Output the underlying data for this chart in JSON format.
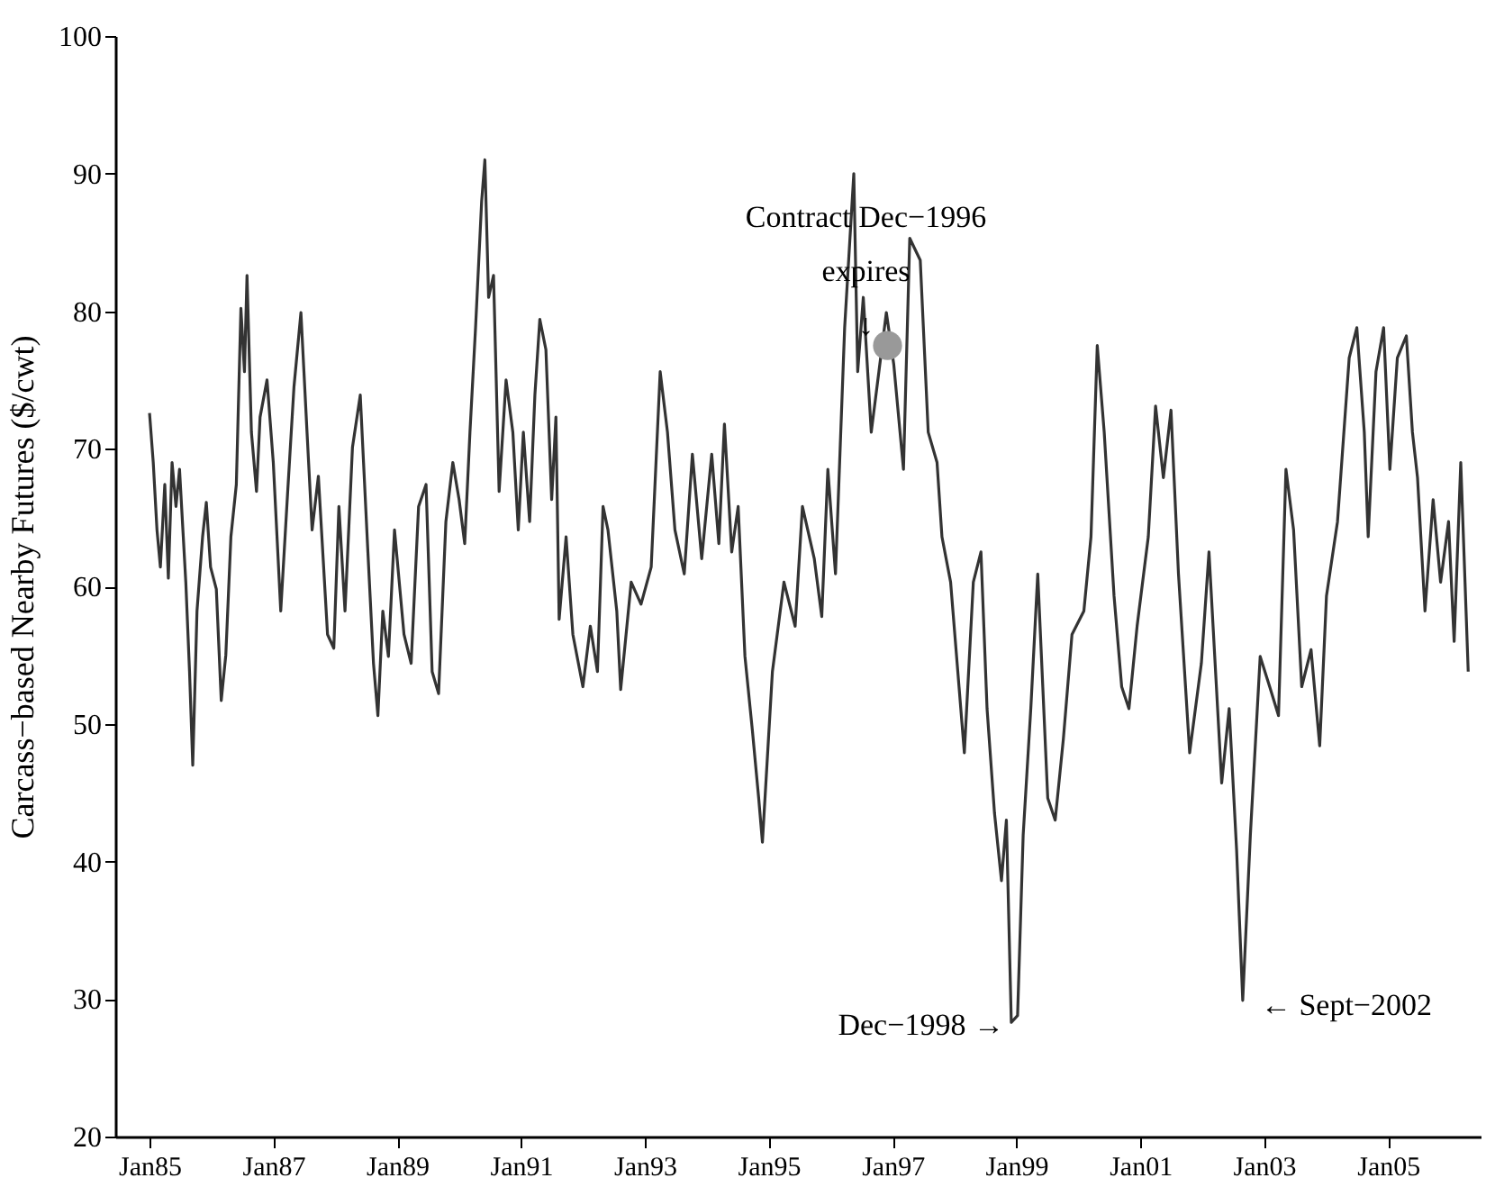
{
  "chart_data": {
    "type": "line",
    "ylabel": "Carcass−based Nearby Futures ($/cwt)",
    "xlim": [
      "1984-06-13",
      "2006-07-01"
    ],
    "ylim": [
      20,
      100
    ],
    "yticks": [
      20,
      30,
      40,
      50,
      60,
      70,
      80,
      90,
      100
    ],
    "xticks": [
      {
        "value": "1985-01-01",
        "label": "Jan85"
      },
      {
        "value": "1987-01-01",
        "label": "Jan87"
      },
      {
        "value": "1989-01-01",
        "label": "Jan89"
      },
      {
        "value": "1991-01-01",
        "label": "Jan91"
      },
      {
        "value": "1993-01-01",
        "label": "Jan93"
      },
      {
        "value": "1995-01-01",
        "label": "Jan95"
      },
      {
        "value": "1997-01-01",
        "label": "Jan97"
      },
      {
        "value": "1999-01-01",
        "label": "Jan99"
      },
      {
        "value": "2001-01-01",
        "label": "Jan01"
      },
      {
        "value": "2003-01-01",
        "label": "Jan03"
      },
      {
        "value": "2005-01-01",
        "label": "Jan05"
      }
    ],
    "grid": false,
    "marker": "none",
    "line_style": "solid",
    "series": [
      {
        "color": "#333333",
        "x": [
          "1985-01-01",
          "1985-01-23",
          "1985-02-14",
          "1985-03-06",
          "1985-04-01",
          "1985-04-22",
          "1985-05-14",
          "1985-06-06",
          "1985-06-27",
          "1985-08-03",
          "1985-08-25",
          "1985-09-13",
          "1985-10-08",
          "1985-11-10",
          "1985-12-02",
          "1985-12-27",
          "1986-01-30",
          "1986-02-28",
          "1986-03-27",
          "1986-04-26",
          "1986-05-28",
          "1986-06-24",
          "1986-07-15",
          "1986-07-30",
          "1986-08-25",
          "1986-09-24",
          "1986-10-15",
          "1986-11-25",
          "1987-01-01",
          "1987-02-14",
          "1987-03-27",
          "1987-05-03",
          "1987-06-13",
          "1987-07-19",
          "1987-08-18",
          "1987-09-24",
          "1987-11-17",
          "1987-12-24",
          "1988-01-23",
          "1988-02-28",
          "1988-04-12",
          "1988-05-28",
          "1988-07-12",
          "1988-08-14",
          "1988-09-09",
          "1988-10-08",
          "1988-11-10",
          "1988-12-16",
          "1989-02-10",
          "1989-03-24",
          "1989-05-07",
          "1989-06-20",
          "1989-07-26",
          "1989-09-02",
          "1989-10-15",
          "1989-11-25",
          "1990-01-01",
          "1990-02-03",
          "1990-03-06",
          "1990-04-08",
          "1990-05-14",
          "1990-06-02",
          "1990-06-24",
          "1990-07-23",
          "1990-08-25",
          "1990-10-05",
          "1990-11-14",
          "1990-12-16",
          "1991-01-15",
          "1991-02-21",
          "1991-03-24",
          "1991-04-22",
          "1991-05-28",
          "1991-07-01",
          "1991-07-26",
          "1991-08-14",
          "1991-09-24",
          "1991-11-03",
          "1992-01-01",
          "1992-02-14",
          "1992-03-27",
          "1992-04-29",
          "1992-05-28",
          "1992-07-19",
          "1992-08-11",
          "1992-10-12",
          "1992-12-09",
          "1993-02-07",
          "1993-04-01",
          "1993-05-14",
          "1993-06-27",
          "1993-08-21",
          "1993-10-08",
          "1993-12-02",
          "1994-01-30",
          "1994-03-13",
          "1994-04-15",
          "1994-05-28",
          "1994-07-05",
          "1994-08-14",
          "1994-09-27",
          "1994-11-03",
          "1994-11-25",
          "1995-01-23",
          "1995-04-01",
          "1995-06-06",
          "1995-07-19",
          "1995-09-27",
          "1995-11-10",
          "1995-12-16",
          "1996-01-30",
          "1996-03-24",
          "1996-05-17",
          "1996-06-09",
          "1996-07-12",
          "1996-08-28",
          "1996-10-12",
          "1996-11-25",
          "1997-01-08",
          "1997-03-06",
          "1997-04-12",
          "1997-06-13",
          "1997-07-30",
          "1997-09-20",
          "1997-10-19",
          "1997-12-09",
          "1998-02-28",
          "1998-04-22",
          "1998-06-06",
          "1998-07-12",
          "1998-08-25",
          "1998-10-05",
          "1998-11-03",
          "1998-12-02",
          "1999-01-08",
          "1999-02-10",
          "1999-03-27",
          "1999-05-07",
          "1999-07-05",
          "1999-08-18",
          "1999-10-05",
          "1999-11-25",
          "2000-02-03",
          "2000-03-16",
          "2000-04-22",
          "2000-06-02",
          "2000-07-30",
          "2000-09-13",
          "2000-10-26",
          "2000-12-13",
          "2001-02-17",
          "2001-04-01",
          "2001-05-17",
          "2001-07-01",
          "2001-08-14",
          "2001-10-19",
          "2001-12-27",
          "2002-02-10",
          "2002-04-26",
          "2002-06-09",
          "2002-07-23",
          "2002-08-28",
          "2002-10-12",
          "2002-12-09",
          "2003-02-03",
          "2003-03-27",
          "2003-05-10",
          "2003-06-24",
          "2003-08-11",
          "2003-10-05",
          "2003-11-25",
          "2004-01-04",
          "2004-03-09",
          "2004-05-17",
          "2004-07-01",
          "2004-08-14",
          "2004-09-06",
          "2004-10-22",
          "2004-12-06",
          "2005-01-12",
          "2005-02-25",
          "2005-04-19",
          "2005-05-25",
          "2005-06-24",
          "2005-08-07",
          "2005-09-24",
          "2005-11-07",
          "2005-12-24",
          "2006-01-26",
          "2006-03-06",
          "2006-04-19"
        ],
        "values": [
          72.6,
          69.0,
          64.1,
          61.4,
          67.4,
          60.6,
          69.0,
          65.8,
          68.5,
          60.3,
          53.8,
          47.0,
          58.2,
          63.6,
          66.1,
          61.4,
          59.8,
          51.7,
          55.0,
          63.6,
          67.4,
          80.2,
          75.6,
          82.6,
          71.2,
          66.9,
          72.3,
          75.0,
          69.0,
          58.2,
          66.9,
          74.5,
          79.9,
          71.2,
          64.1,
          68.0,
          56.5,
          55.5,
          65.8,
          58.2,
          70.1,
          73.9,
          62.5,
          54.4,
          50.6,
          58.2,
          54.9,
          64.1,
          56.5,
          54.4,
          65.8,
          67.4,
          53.8,
          52.2,
          64.7,
          69.0,
          66.3,
          63.1,
          71.2,
          78.8,
          88.0,
          91.0,
          81.0,
          82.6,
          66.9,
          75.0,
          71.2,
          64.1,
          71.2,
          64.7,
          73.9,
          79.4,
          77.2,
          66.3,
          72.3,
          57.6,
          63.6,
          56.5,
          52.7,
          57.1,
          53.8,
          65.8,
          64.1,
          58.2,
          52.5,
          60.3,
          58.7,
          61.4,
          75.6,
          71.2,
          64.1,
          60.9,
          69.6,
          62.0,
          69.6,
          63.1,
          71.8,
          62.5,
          65.8,
          54.9,
          49.5,
          44.6,
          41.4,
          53.8,
          60.3,
          57.1,
          65.8,
          62.0,
          57.8,
          68.5,
          60.9,
          78.8,
          90.0,
          75.6,
          81.0,
          71.2,
          75.6,
          79.9,
          76.1,
          68.5,
          85.3,
          83.7,
          71.2,
          69.0,
          63.6,
          60.3,
          47.9,
          60.3,
          62.5,
          51.1,
          43.5,
          38.6,
          43.0,
          28.3,
          28.8,
          41.9,
          51.1,
          60.9,
          44.6,
          43.0,
          48.9,
          56.5,
          58.2,
          63.6,
          77.5,
          71.2,
          59.3,
          52.7,
          51.1,
          57.1,
          63.6,
          73.1,
          67.9,
          72.8,
          60.9,
          47.9,
          54.4,
          62.5,
          45.7,
          51.1,
          40.8,
          29.9,
          41.9,
          54.9,
          52.7,
          50.6,
          68.5,
          64.1,
          52.7,
          55.4,
          48.4,
          59.3,
          64.7,
          76.6,
          78.8,
          71.2,
          63.6,
          75.6,
          78.8,
          68.5,
          76.6,
          78.2,
          71.2,
          67.9,
          58.2,
          66.3,
          60.3,
          64.7,
          56.0,
          69.0,
          53.8
        ]
      },
      {
        "type": "scatter",
        "color": "#999999",
        "marker": "circle",
        "x": [
          "1996-12-02"
        ],
        "values": [
          77.5
        ]
      }
    ],
    "annotations": [
      {
        "text": "Contract Dec−1996\nexpires\n↓",
        "x": "1996-12-02",
        "y": 77.5
      },
      {
        "text": "Dec−1998 →",
        "x": "1998-12-02",
        "y": 28.3
      },
      {
        "text": "← Sept−2002",
        "x": "2002-08-28",
        "y": 29.9
      }
    ]
  }
}
